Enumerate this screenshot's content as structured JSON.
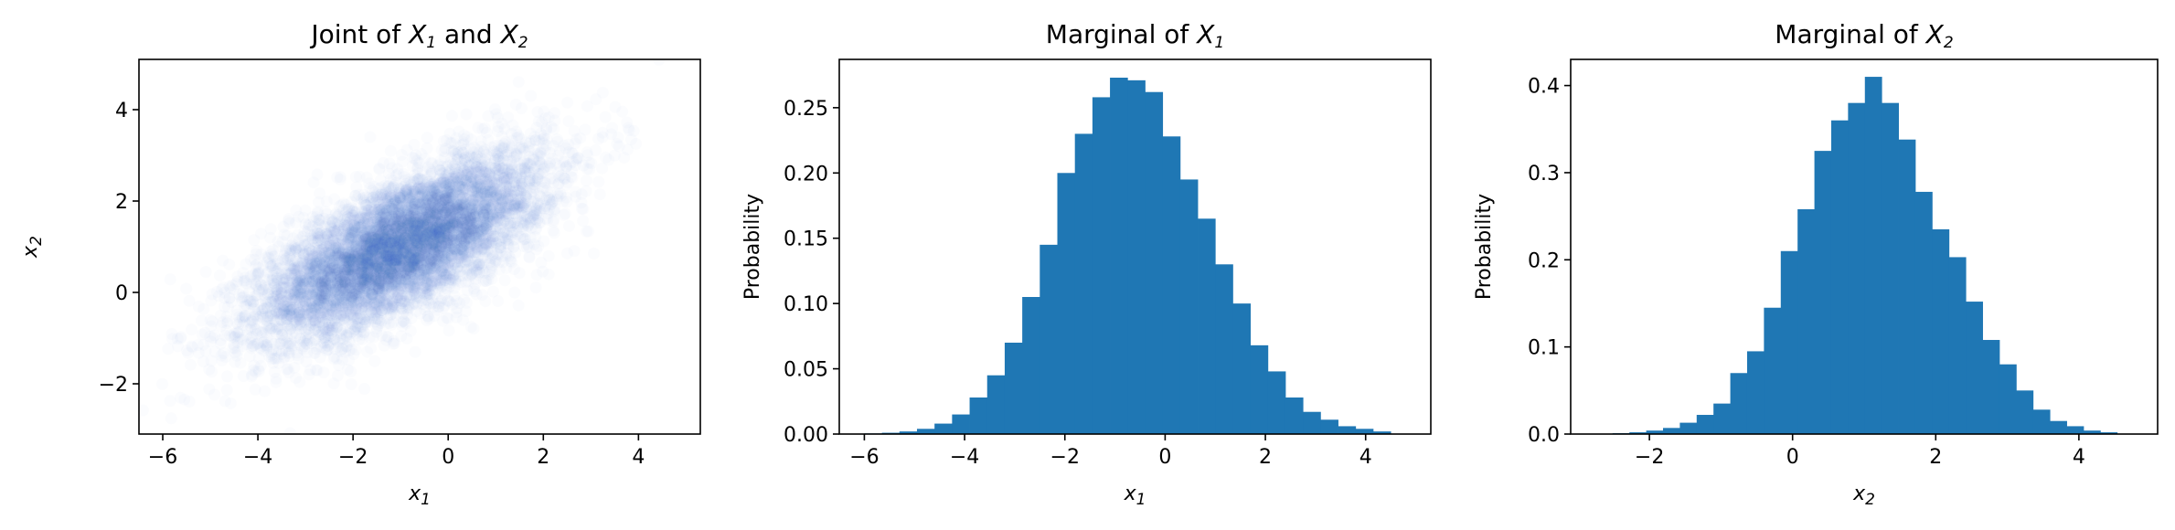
{
  "chart_data": [
    {
      "type": "scatter",
      "title": "Joint of X1 and X2",
      "title_parts": [
        "Joint of ",
        "X",
        "1",
        " and ",
        "X",
        "2"
      ],
      "xlabel_parts": [
        "x",
        "1"
      ],
      "ylabel_parts": [
        "x",
        "2"
      ],
      "xlim": [
        -6.5,
        5.3
      ],
      "ylim": [
        -3.1,
        5.1
      ],
      "xticks": [
        -6,
        -4,
        -2,
        0,
        2,
        4
      ],
      "yticks": [
        -2,
        0,
        2,
        4
      ],
      "xtick_labels": [
        "−6",
        "−4",
        "−2",
        "0",
        "2",
        "4"
      ],
      "ytick_labels": [
        "−2",
        "0",
        "2",
        "4"
      ],
      "color": "#1f77b4",
      "alpha": 0.02,
      "distribution": {
        "mean": [
          -1.0,
          1.0
        ],
        "std": [
          1.5,
          1.0
        ],
        "corr": 0.7,
        "n_points": 8000
      }
    },
    {
      "type": "bar",
      "title": "Marginal of X1",
      "title_parts": [
        "Marginal of ",
        "X",
        "1"
      ],
      "xlabel_parts": [
        "x",
        "1"
      ],
      "ylabel": "Probability",
      "xlim": [
        -6.5,
        5.3
      ],
      "ylim": [
        0,
        0.287
      ],
      "xticks": [
        -6,
        -4,
        -2,
        0,
        2,
        4
      ],
      "yticks": [
        0,
        0.05,
        0.1,
        0.15,
        0.2,
        0.25
      ],
      "xtick_labels": [
        "−6",
        "−4",
        "−2",
        "0",
        "2",
        "4"
      ],
      "ytick_labels": [
        "0.00",
        "0.05",
        "0.10",
        "0.15",
        "0.20",
        "0.25"
      ],
      "color": "#1f77b4",
      "bin_start": -6.0,
      "bin_width": 0.35,
      "values": [
        0.0005,
        0.001,
        0.002,
        0.004,
        0.008,
        0.015,
        0.028,
        0.045,
        0.07,
        0.105,
        0.145,
        0.2,
        0.23,
        0.258,
        0.273,
        0.271,
        0.262,
        0.228,
        0.195,
        0.165,
        0.13,
        0.1,
        0.068,
        0.048,
        0.028,
        0.017,
        0.011,
        0.006,
        0.004,
        0.002
      ]
    },
    {
      "type": "bar",
      "title": "Marginal of X2",
      "title_parts": [
        "Marginal of ",
        "X",
        "2"
      ],
      "xlabel_parts": [
        "x",
        "2"
      ],
      "ylabel": "Probability",
      "xlim": [
        -3.1,
        5.1
      ],
      "ylim": [
        0,
        0.43
      ],
      "xticks": [
        -2,
        0,
        2,
        4
      ],
      "yticks": [
        0,
        0.1,
        0.2,
        0.3,
        0.4
      ],
      "xtick_labels": [
        "−2",
        "0",
        "2",
        "4"
      ],
      "ytick_labels": [
        "0.0",
        "0.1",
        "0.2",
        "0.3",
        "0.4"
      ],
      "color": "#1f77b4",
      "bin_start": -2.75,
      "bin_width": 0.235,
      "values": [
        0.0005,
        0.001,
        0.002,
        0.004,
        0.007,
        0.013,
        0.022,
        0.035,
        0.07,
        0.095,
        0.145,
        0.21,
        0.258,
        0.325,
        0.36,
        0.38,
        0.41,
        0.38,
        0.338,
        0.278,
        0.235,
        0.203,
        0.152,
        0.108,
        0.08,
        0.05,
        0.028,
        0.015,
        0.009,
        0.004,
        0.002
      ]
    }
  ]
}
